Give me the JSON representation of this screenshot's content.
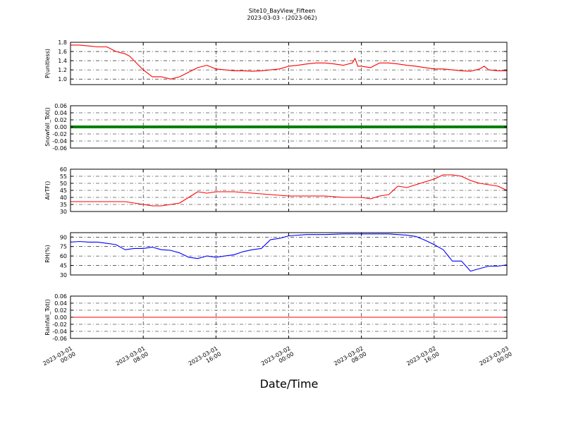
{
  "figure": {
    "title": "Site10_BayView_Fifteen",
    "subtitle": "2023-03-03 - (2023-062)",
    "xlabel": "Date/Time",
    "x_ticks": [
      "2023-03-01\n00:00",
      "2023-03-01\n08:00",
      "2023-03-01\n16:00",
      "2023-03-02\n00:00",
      "2023-03-02\n08:00",
      "2023-03-02\n16:00",
      "2023-03-03\n00:00"
    ]
  },
  "chart_data": [
    {
      "type": "line",
      "ylabel": "P(unitless)",
      "color": "#ff0000",
      "xlim": [
        0,
        48
      ],
      "ylim": [
        0.88,
        1.8
      ],
      "yticks": [
        1.0,
        1.2,
        1.4,
        1.6,
        1.8
      ],
      "grid": true,
      "x": [
        0,
        1,
        2,
        3,
        4,
        5,
        6,
        6.5,
        7,
        8,
        9,
        10,
        11,
        12,
        13,
        14,
        15,
        16,
        17,
        18,
        19,
        20,
        21,
        22,
        23,
        24,
        25,
        26,
        27,
        28,
        29,
        30,
        31,
        31.3,
        31.6,
        32,
        33,
        34,
        35,
        36,
        37,
        38,
        39,
        40,
        41,
        42,
        43,
        44,
        45,
        45.5,
        46,
        47,
        48
      ],
      "values": [
        1.74,
        1.74,
        1.72,
        1.7,
        1.7,
        1.6,
        1.55,
        1.5,
        1.4,
        1.2,
        1.05,
        1.05,
        1.0,
        1.05,
        1.15,
        1.25,
        1.3,
        1.22,
        1.2,
        1.18,
        1.18,
        1.17,
        1.18,
        1.2,
        1.22,
        1.28,
        1.3,
        1.33,
        1.35,
        1.35,
        1.33,
        1.3,
        1.35,
        1.45,
        1.28,
        1.28,
        1.25,
        1.35,
        1.35,
        1.33,
        1.3,
        1.28,
        1.25,
        1.22,
        1.22,
        1.2,
        1.18,
        1.17,
        1.22,
        1.28,
        1.2,
        1.18,
        1.18
      ]
    },
    {
      "type": "line",
      "ylabel": "Snowfall_Tot()",
      "color": "#008000",
      "xlim": [
        0,
        48
      ],
      "ylim": [
        -0.06,
        0.06
      ],
      "yticks": [
        -0.06,
        -0.04,
        -0.02,
        0.0,
        0.02,
        0.04,
        0.06
      ],
      "grid": true,
      "x": [
        0,
        48
      ],
      "values": [
        0.0,
        0.0
      ]
    },
    {
      "type": "line",
      "ylabel": "AirTF()",
      "color": "#ff0000",
      "xlim": [
        0,
        48
      ],
      "ylim": [
        30,
        60
      ],
      "yticks": [
        30,
        35,
        40,
        45,
        50,
        55,
        60
      ],
      "grid": true,
      "x": [
        0,
        2,
        4,
        6,
        7,
        8,
        9,
        10,
        11,
        12,
        13,
        14,
        15,
        16,
        18,
        20,
        22,
        24,
        26,
        28,
        30,
        31,
        32,
        33,
        34,
        35,
        36,
        37,
        38,
        39,
        40,
        41,
        42,
        43,
        44,
        45,
        46,
        47,
        48
      ],
      "values": [
        37,
        37,
        37,
        37,
        36,
        35,
        34,
        34,
        35,
        36,
        40,
        44,
        43,
        44,
        44,
        43,
        42,
        41,
        41,
        41,
        40,
        40,
        40,
        39,
        41,
        42,
        48,
        47,
        49,
        51,
        53,
        56,
        56,
        55,
        52,
        50,
        49,
        48,
        45
      ]
    },
    {
      "type": "line",
      "ylabel": "RH(%)",
      "color": "#0000ff",
      "xlim": [
        0,
        48
      ],
      "ylim": [
        30,
        97
      ],
      "yticks": [
        30,
        45,
        60,
        75,
        90
      ],
      "grid": true,
      "x": [
        0,
        1,
        2,
        3,
        4,
        5,
        6,
        7,
        8,
        9,
        10,
        11,
        12,
        13,
        14,
        15,
        16,
        17,
        18,
        19,
        20,
        21,
        22,
        23,
        24,
        26,
        28,
        30,
        32,
        34,
        35,
        36,
        37,
        38,
        39,
        40,
        41,
        42,
        43,
        44,
        45,
        46,
        47,
        48
      ],
      "values": [
        82,
        83,
        82,
        82,
        80,
        78,
        70,
        72,
        72,
        74,
        70,
        69,
        65,
        58,
        56,
        60,
        58,
        60,
        62,
        67,
        70,
        72,
        86,
        88,
        92,
        94,
        94,
        95,
        95,
        95,
        95,
        94,
        93,
        91,
        85,
        78,
        70,
        52,
        52,
        36,
        40,
        44,
        44,
        46
      ]
    },
    {
      "type": "line",
      "ylabel": "Rainfall_Tot()",
      "color": "#ff0000",
      "xlim": [
        0,
        48
      ],
      "ylim": [
        -0.06,
        0.06
      ],
      "yticks": [
        -0.06,
        -0.04,
        -0.02,
        0.0,
        0.02,
        0.04,
        0.06
      ],
      "grid": true,
      "x": [
        0,
        48
      ],
      "values": [
        0.0,
        0.0
      ]
    }
  ]
}
